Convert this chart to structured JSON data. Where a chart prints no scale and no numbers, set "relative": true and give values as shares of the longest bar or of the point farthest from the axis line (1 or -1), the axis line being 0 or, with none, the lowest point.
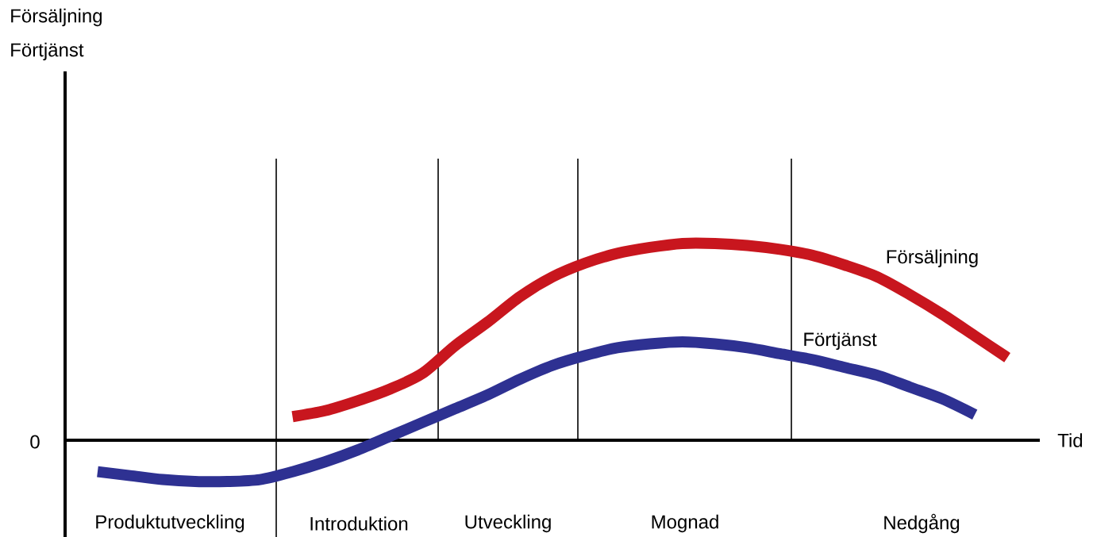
{
  "chart_data": {
    "type": "line",
    "relative": true,
    "xlabel": "Tid",
    "categories": [
      null,
      null,
      null,
      null,
      null,
      null,
      null,
      null,
      null,
      null,
      null,
      null,
      null,
      null,
      null,
      null,
      null,
      null,
      null,
      null,
      null,
      null,
      null,
      null,
      null,
      null,
      null,
      null,
      null,
      null,
      null
    ],
    "series": [
      {
        "name": "Försäljning",
        "color": "#c8161e",
        "values": [
          null,
          null,
          null,
          null,
          null,
          null,
          null,
          0.12,
          0.15,
          0.2,
          0.26,
          0.34,
          0.48,
          0.6,
          0.73,
          0.83,
          0.9,
          0.95,
          0.98,
          1.0,
          1.0,
          0.99,
          0.97,
          0.94,
          0.89,
          0.83,
          0.74,
          0.64,
          0.53,
          0.42,
          null
        ]
      },
      {
        "name": "Förtjänst",
        "color": "#2e3192",
        "values": [
          null,
          -0.16,
          -0.18,
          -0.2,
          -0.21,
          -0.21,
          -0.2,
          -0.16,
          -0.11,
          -0.05,
          0.02,
          0.09,
          0.16,
          0.23,
          0.31,
          0.38,
          0.43,
          0.47,
          0.49,
          0.5,
          0.49,
          0.47,
          0.44,
          0.41,
          0.37,
          0.33,
          0.27,
          0.21,
          0.13,
          null,
          null
        ]
      }
    ],
    "annotations": [
      "Försäljning",
      "Förtjänst",
      "0",
      "Produktutveckling",
      "Introduktion",
      "Utveckling",
      "Mognad",
      "Nedgång"
    ]
  }
}
